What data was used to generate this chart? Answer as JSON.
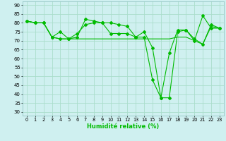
{
  "xlabel": "Humidité relative (%)",
  "background_color": "#cff0f0",
  "grid_color": "#aaddcc",
  "line_color": "#00bb00",
  "xlim": [
    -0.5,
    23.5
  ],
  "ylim": [
    28,
    92
  ],
  "yticks": [
    30,
    35,
    40,
    45,
    50,
    55,
    60,
    65,
    70,
    75,
    80,
    85,
    90
  ],
  "xticks": [
    0,
    1,
    2,
    3,
    4,
    5,
    6,
    7,
    8,
    9,
    10,
    11,
    12,
    13,
    14,
    15,
    16,
    17,
    18,
    19,
    20,
    21,
    22,
    23
  ],
  "series": [
    {
      "x": [
        0,
        1,
        2,
        3,
        4,
        5,
        6,
        7,
        8,
        9,
        10,
        11,
        12,
        13,
        14,
        15,
        16,
        17,
        18,
        19,
        20,
        21,
        22,
        23
      ],
      "y": [
        81,
        80,
        80,
        72,
        71,
        71,
        72,
        82,
        81,
        80,
        80,
        79,
        78,
        72,
        72,
        48,
        38,
        38,
        75,
        76,
        70,
        84,
        77,
        77
      ],
      "marker": "D",
      "markersize": 2.0
    },
    {
      "x": [
        0,
        1,
        2,
        3,
        4,
        5,
        6,
        7,
        8,
        9,
        10,
        11,
        12,
        13,
        14,
        15,
        16,
        17,
        18,
        19,
        20,
        21,
        22,
        23
      ],
      "y": [
        81,
        80,
        80,
        72,
        75,
        71,
        74,
        79,
        80,
        80,
        74,
        74,
        74,
        72,
        75,
        66,
        38,
        63,
        76,
        76,
        71,
        68,
        79,
        77
      ],
      "marker": "D",
      "markersize": 2.0
    },
    {
      "x": [
        0,
        1,
        2,
        3,
        4,
        5,
        6,
        7,
        8,
        9,
        10,
        11,
        12,
        13,
        14,
        15,
        16,
        17,
        18,
        19,
        20,
        21,
        22,
        23
      ],
      "y": [
        81,
        80,
        80,
        72,
        71,
        71,
        71,
        71,
        71,
        71,
        71,
        71,
        71,
        71,
        71,
        71,
        71,
        71,
        72,
        72,
        70,
        68,
        78,
        77
      ],
      "marker": null,
      "markersize": 0
    }
  ]
}
